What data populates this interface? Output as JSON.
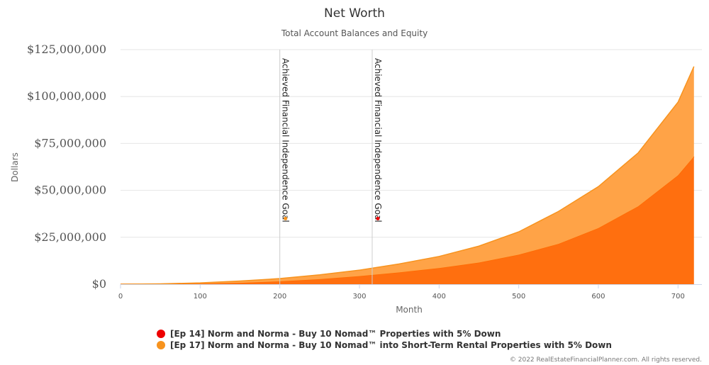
{
  "chart_data": {
    "type": "area",
    "title": "Net Worth",
    "subtitle": "Total Account Balances and Equity",
    "xlabel": "Month",
    "ylabel": "Dollars",
    "xlim": [
      0,
      730
    ],
    "ylim": [
      0,
      125000000
    ],
    "x_ticks": [
      0,
      100,
      200,
      300,
      400,
      500,
      600,
      700
    ],
    "x_tick_labels": [
      "0",
      "100",
      "200",
      "300",
      "400",
      "500",
      "600",
      "700"
    ],
    "y_ticks": [
      0,
      25000000,
      50000000,
      75000000,
      100000000,
      125000000
    ],
    "y_tick_labels": [
      "$0",
      "$25,000,000",
      "$50,000,000",
      "$75,000,000",
      "$100,000,000",
      "$125,000,000"
    ],
    "grid": true,
    "stacked": true,
    "legend_position": "bottom",
    "series": [
      {
        "name": "[Ep 14] Norm and Norma - Buy 10 Nomad™ Properties with 5% Down",
        "legend_color": "#ee0000",
        "fill_color": "#ff6f0f",
        "x": [
          0,
          50,
          100,
          150,
          200,
          250,
          300,
          350,
          400,
          450,
          500,
          550,
          600,
          650,
          700,
          720
        ],
        "values": [
          0,
          100000,
          300000,
          700000,
          1500000,
          2700000,
          4300000,
          6300000,
          8600000,
          11500000,
          15700000,
          21500000,
          29900000,
          41500000,
          58000000,
          68000000
        ]
      },
      {
        "name": "[Ep 17] Norm and Norma - Buy 10 Nomad™ into Short-Term Rental Properties with 5% Down",
        "legend_color": "#f7931e",
        "fill_color": "#ffa347",
        "x": [
          0,
          50,
          100,
          150,
          200,
          250,
          300,
          350,
          400,
          450,
          500,
          550,
          600,
          650,
          700,
          720
        ],
        "values": [
          0,
          100000,
          400000,
          1000000,
          1500000,
          2300000,
          3200000,
          4500000,
          6200000,
          8800000,
          12200000,
          17300000,
          22100000,
          28500000,
          39000000,
          48000000
        ]
      }
    ],
    "plot_lines": [
      {
        "x": 200,
        "label": "Achieved Financial Independence Goal",
        "marker_color": "#f7931e",
        "marker_y": 35000000
      },
      {
        "x": 316,
        "label": "Achieved Financial Independence Goal",
        "marker_color": "#ee0000",
        "marker_y": 35000000
      }
    ]
  },
  "credits": "© 2022 RealEstateFinancialPlanner.com. All rights reserved."
}
